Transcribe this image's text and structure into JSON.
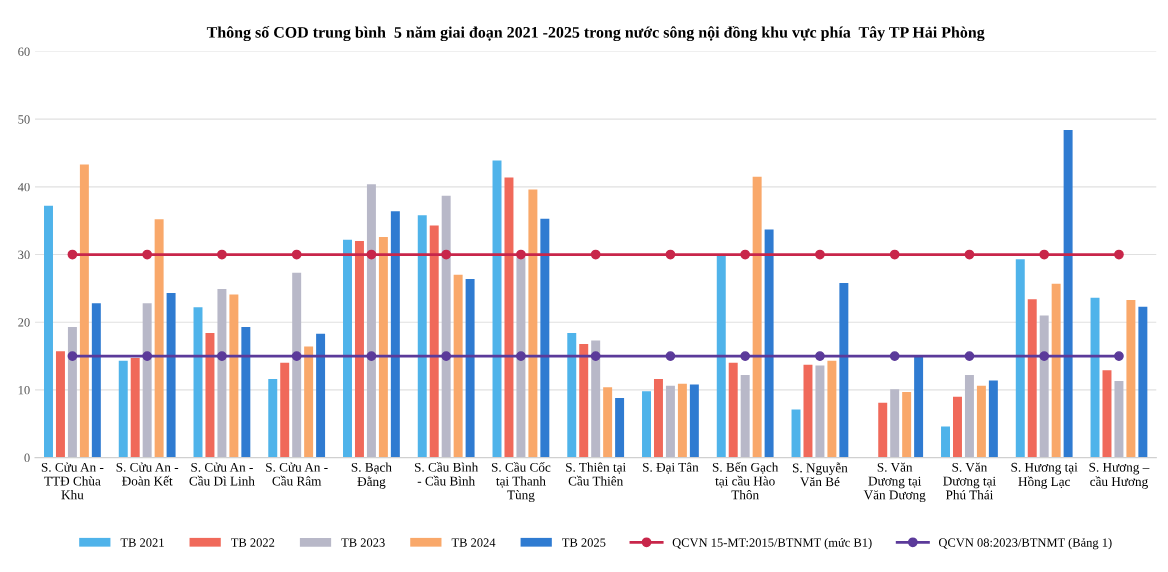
{
  "chart_data": {
    "type": "bar",
    "title": "Thông số COD trung bình  5 năm giai đoạn 2021 -2025 trong nước sông nội đồng khu vực phía  Tây TP Hải Phòng",
    "categories": [
      "S. Cửu An -\nTTĐ Chùa\nKhu",
      "S. Cửu An -\nĐoàn Kết",
      "S. Cửu An -\nCầu Dì Linh",
      "S. Cửu An -\nCầu Râm",
      "S. Bạch\nĐằng",
      "S. Cầu Bình\n- Cầu Bình",
      "S. Cầu Cốc\ntại Thanh\nTùng",
      "S. Thiên tại\nCầu Thiên",
      "S. Đại Tân",
      "S. Bến Gạch\ntại cầu Hào\nThôn",
      "S. Nguyễn\nVăn Bé",
      "S. Văn\nDương tại\nVăn Dương",
      "S. Văn\nDương tại\nPhú Thái",
      "S. Hương tại\nHồng Lạc",
      "S. Hương –\ncầu Hương"
    ],
    "series": [
      {
        "name": "TB 2021",
        "color": "#4fb3ea",
        "values": [
          37.2,
          14.3,
          22.2,
          11.6,
          32.2,
          35.8,
          43.9,
          18.4,
          9.8,
          30.0,
          7.1,
          null,
          4.6,
          29.3,
          23.6
        ]
      },
      {
        "name": "TB 2022",
        "color": "#f0695a",
        "values": [
          15.7,
          14.7,
          18.4,
          14.0,
          32.0,
          34.3,
          41.4,
          16.8,
          11.6,
          14.0,
          13.7,
          8.1,
          9.0,
          23.4,
          12.9
        ]
      },
      {
        "name": "TB 2023",
        "color": "#b8b8c8",
        "values": [
          19.3,
          22.8,
          24.9,
          27.3,
          40.4,
          38.7,
          29.6,
          17.3,
          10.6,
          12.2,
          13.6,
          10.1,
          12.2,
          21.0,
          11.3
        ]
      },
      {
        "name": "TB 2024",
        "color": "#f9a86a",
        "values": [
          43.3,
          35.2,
          24.1,
          16.4,
          32.6,
          27.0,
          39.6,
          10.4,
          10.9,
          41.5,
          14.3,
          9.7,
          10.6,
          25.7,
          23.3
        ]
      },
      {
        "name": "TB 2025",
        "color": "#2f7bd1",
        "values": [
          22.8,
          24.3,
          19.3,
          18.3,
          36.4,
          26.4,
          35.3,
          8.8,
          10.8,
          33.7,
          25.8,
          14.9,
          11.4,
          48.4,
          22.3
        ]
      },
      {
        "name": "QCVN 15-MT:2015/BTNMT (mức B1)",
        "type": "line",
        "color": "#c8264a",
        "values": [
          30,
          30,
          30,
          30,
          30,
          30,
          30,
          30,
          30,
          30,
          30,
          30,
          30,
          30,
          30
        ]
      },
      {
        "name": "QCVN 08:2023/BTNMT (Bảng 1)",
        "type": "line",
        "color": "#5b3a9a",
        "values": [
          15,
          15,
          15,
          15,
          15,
          15,
          15,
          15,
          15,
          15,
          15,
          15,
          15,
          15,
          15
        ]
      }
    ],
    "ylim": [
      0,
      60
    ],
    "yticks": [
      0,
      10,
      20,
      30,
      40,
      50,
      60
    ],
    "grid": "y",
    "legend": "bottom",
    "marker": "circle",
    "line_style": "solid"
  }
}
